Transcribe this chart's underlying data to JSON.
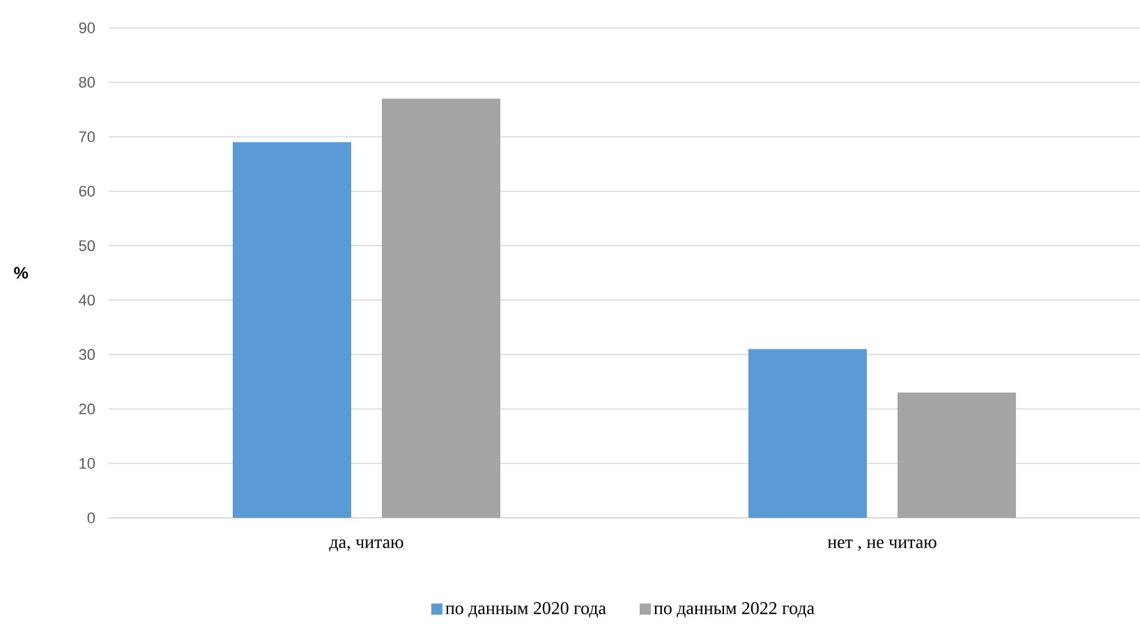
{
  "chart_data": {
    "type": "bar",
    "ylabel": "%",
    "categories": [
      "да, читаю",
      "нет , не читаю"
    ],
    "series": [
      {
        "name": "по данным 2020 года",
        "color": "#5b9bd5",
        "values": [
          69,
          31
        ]
      },
      {
        "name": "по данным 2022 года",
        "color": "#a5a5a5",
        "values": [
          77,
          23
        ]
      }
    ],
    "ylim": [
      0,
      90
    ],
    "yticks": [
      0,
      10,
      20,
      30,
      40,
      50,
      60,
      70,
      80,
      90
    ],
    "grid": "y",
    "legend": "bottom"
  }
}
